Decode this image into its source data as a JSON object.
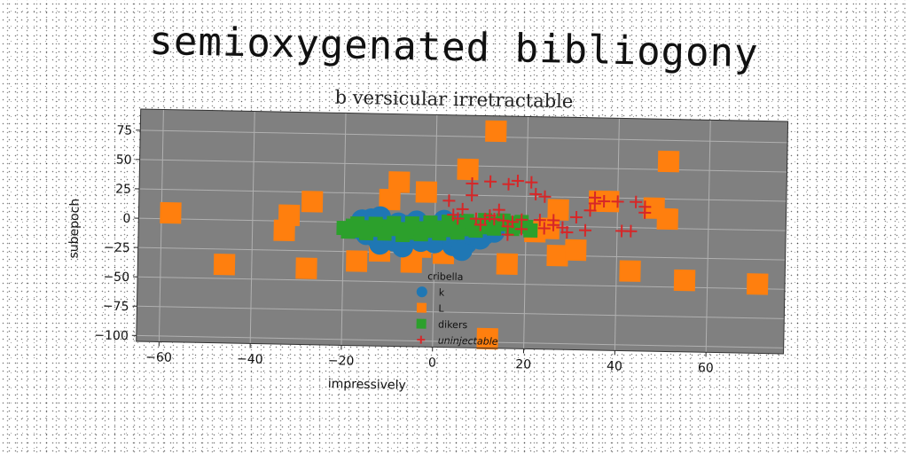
{
  "title": "semioxygenated bibliogony",
  "subtitle": "b versicular irretractable",
  "chart_data": {
    "type": "scatter",
    "xlabel": "impressively",
    "ylabel": "subepoch",
    "xlim": [
      -65,
      77
    ],
    "ylim": [
      -105,
      93
    ],
    "xticks": [
      -60,
      -40,
      -20,
      0,
      20,
      40,
      60
    ],
    "yticks": [
      75,
      50,
      25,
      0,
      -25,
      -50,
      -75,
      -100
    ],
    "grid": true,
    "background": "#808080",
    "legend": {
      "title": "cribella",
      "position": "lower-center"
    },
    "series": [
      {
        "name": "k",
        "marker": "circle",
        "color": "#1f77b4",
        "points": [
          [
            -17,
            -5
          ],
          [
            -15,
            -10
          ],
          [
            -14,
            3
          ],
          [
            -13,
            -12
          ],
          [
            -12,
            -18
          ],
          [
            -11,
            -3
          ],
          [
            -10,
            -8
          ],
          [
            -9,
            -15
          ],
          [
            -8,
            0
          ],
          [
            -7,
            -20
          ],
          [
            -6,
            -6
          ],
          [
            -5,
            -12
          ],
          [
            -4,
            2
          ],
          [
            -3,
            -8
          ],
          [
            -2,
            -4
          ],
          [
            -1,
            -14
          ],
          [
            0,
            -2
          ],
          [
            1,
            -9
          ],
          [
            2,
            3
          ],
          [
            3,
            -5
          ],
          [
            4,
            -12
          ],
          [
            5,
            0
          ],
          [
            6,
            -7
          ],
          [
            7,
            -16
          ],
          [
            8,
            -3
          ],
          [
            9,
            -10
          ],
          [
            10,
            -4
          ],
          [
            11,
            -8
          ],
          [
            12,
            -2
          ],
          [
            13,
            -6
          ],
          [
            -16,
            2
          ],
          [
            -12,
            5
          ],
          [
            -6,
            -2
          ],
          [
            0,
            -16
          ],
          [
            4,
            -18
          ],
          [
            6,
            -22
          ],
          [
            -3,
            -15
          ],
          [
            8,
            -8
          ],
          [
            10,
            -12
          ]
        ]
      },
      {
        "name": "L",
        "marker": "square",
        "color": "#ff7f0e",
        "points": [
          [
            -58,
            5
          ],
          [
            -46,
            -38
          ],
          [
            -32,
            5
          ],
          [
            -33,
            -8
          ],
          [
            -27,
            17
          ],
          [
            -28,
            -40
          ],
          [
            -17,
            -33
          ],
          [
            -12,
            -24
          ],
          [
            -10,
            20
          ],
          [
            -8,
            35
          ],
          [
            -5,
            -33
          ],
          [
            -3,
            -20
          ],
          [
            -2,
            27
          ],
          [
            2,
            -25
          ],
          [
            3,
            -2
          ],
          [
            7,
            47
          ],
          [
            13,
            80
          ],
          [
            16,
            -33
          ],
          [
            22,
            -5
          ],
          [
            25,
            -2
          ],
          [
            27,
            14
          ],
          [
            27,
            -25
          ],
          [
            31,
            -20
          ],
          [
            36,
            22
          ],
          [
            38,
            22
          ],
          [
            43,
            -37
          ],
          [
            48,
            17
          ],
          [
            51,
            57
          ],
          [
            51,
            8
          ],
          [
            55,
            -44
          ],
          [
            71,
            -46
          ],
          [
            12,
            -97
          ]
        ]
      },
      {
        "name": "dikers",
        "marker": "square",
        "color": "#2ca02c",
        "points": [
          [
            -20,
            -5
          ],
          [
            -18,
            -3
          ],
          [
            -16,
            -7
          ],
          [
            -14,
            -4
          ],
          [
            -12,
            -6
          ],
          [
            -10,
            -3
          ],
          [
            -8,
            -5
          ],
          [
            -6,
            -8
          ],
          [
            -4,
            -4
          ],
          [
            -2,
            -6
          ],
          [
            0,
            -3
          ],
          [
            2,
            -5
          ],
          [
            4,
            -2
          ],
          [
            6,
            -4
          ],
          [
            8,
            -1
          ],
          [
            10,
            0
          ],
          [
            12,
            -2
          ],
          [
            14,
            1
          ],
          [
            16,
            2
          ],
          [
            18,
            0
          ],
          [
            20,
            -1
          ],
          [
            -19,
            -8
          ],
          [
            -15,
            -9
          ],
          [
            -11,
            -9
          ],
          [
            -7,
            -10
          ],
          [
            -3,
            -9
          ],
          [
            1,
            -8
          ],
          [
            5,
            -7
          ],
          [
            9,
            -5
          ],
          [
            13,
            -3
          ],
          [
            17,
            -3
          ],
          [
            21,
            -4
          ],
          [
            -17,
            -1
          ],
          [
            -13,
            -1
          ],
          [
            -9,
            0
          ],
          [
            -5,
            0
          ],
          [
            -1,
            1
          ],
          [
            3,
            2
          ],
          [
            7,
            3
          ],
          [
            11,
            4
          ],
          [
            15,
            4
          ],
          [
            19,
            3
          ]
        ]
      },
      {
        "name": "uninjectable",
        "marker": "plus",
        "color": "#d62728",
        "points": [
          [
            3,
            20
          ],
          [
            8,
            25
          ],
          [
            8,
            35
          ],
          [
            12,
            37
          ],
          [
            14,
            13
          ],
          [
            16,
            35
          ],
          [
            18,
            38
          ],
          [
            21,
            37
          ],
          [
            22,
            27
          ],
          [
            24,
            25
          ],
          [
            5,
            5
          ],
          [
            9,
            5
          ],
          [
            11,
            5
          ],
          [
            13,
            5
          ],
          [
            15,
            4
          ],
          [
            17,
            3
          ],
          [
            19,
            5
          ],
          [
            16,
            -1
          ],
          [
            16,
            -8
          ],
          [
            19,
            -3
          ],
          [
            23,
            5
          ],
          [
            24,
            -2
          ],
          [
            26,
            1
          ],
          [
            26,
            5
          ],
          [
            29,
            -5
          ],
          [
            31,
            8
          ],
          [
            34,
            14
          ],
          [
            35,
            25
          ],
          [
            35,
            20
          ],
          [
            37,
            22
          ],
          [
            40,
            22
          ],
          [
            43,
            -3
          ],
          [
            44,
            22
          ],
          [
            46,
            13
          ],
          [
            46,
            18
          ],
          [
            33,
            -3
          ],
          [
            41,
            -3
          ],
          [
            28,
            -1
          ],
          [
            10,
            0
          ],
          [
            12,
            8
          ],
          [
            6,
            13
          ],
          [
            4,
            8
          ]
        ]
      }
    ]
  }
}
